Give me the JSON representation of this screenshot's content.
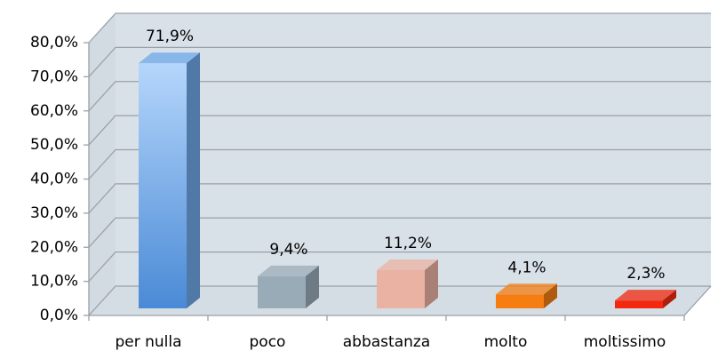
{
  "chart_data": {
    "type": "bar3d",
    "categories": [
      "per nulla",
      "poco",
      "abbastanza",
      "molto",
      "moltissimo"
    ],
    "values": [
      71.9,
      9.4,
      11.2,
      4.1,
      2.3
    ],
    "value_labels": [
      "71,9%",
      "9,4%",
      "11,2%",
      "4,1%",
      "2,3%"
    ],
    "colors": [
      "#6fa8ea",
      "#9aabb8",
      "#e9b2a2",
      "#f57d12",
      "#f2290e"
    ],
    "ylim": [
      0,
      80
    ],
    "yticks": [
      {
        "value": 0,
        "label": "0,0%"
      },
      {
        "value": 10,
        "label": "10,0%"
      },
      {
        "value": 20,
        "label": "20,0%"
      },
      {
        "value": 30,
        "label": "30,0%"
      },
      {
        "value": 40,
        "label": "40,0%"
      },
      {
        "value": 50,
        "label": "50,0%"
      },
      {
        "value": 60,
        "label": "60,0%"
      },
      {
        "value": 70,
        "label": "70,0%"
      },
      {
        "value": 80,
        "label": "80,0%"
      }
    ],
    "grid": true
  }
}
